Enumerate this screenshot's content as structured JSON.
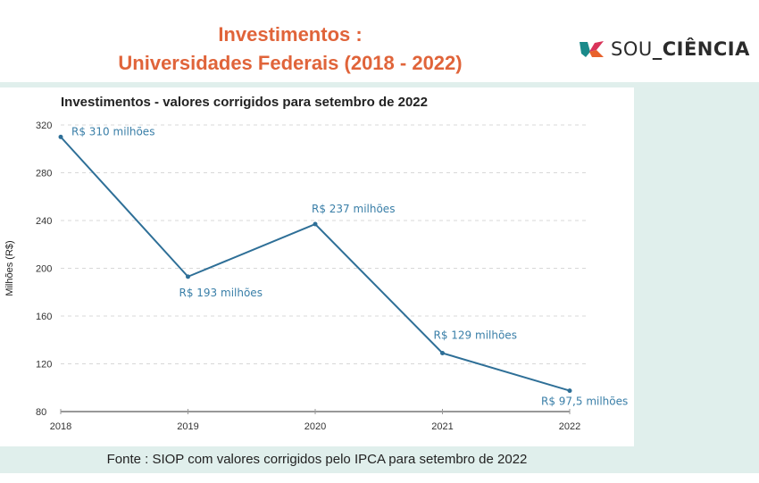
{
  "header": {
    "title_line1": "Investimentos :",
    "title_line2": "Universidades Federais (2018 - 2022)",
    "logo": {
      "icon": "sou-ciencia-logo-icon",
      "text_light": "SOU",
      "text_bold": "_CIÊNCIA",
      "colors": [
        "#1a8a8a",
        "#d9345a",
        "#e8622c"
      ]
    }
  },
  "colors": {
    "title": "#e0643a",
    "line": "#2e6f97",
    "label": "#3a7fa8",
    "band": "#e0efec"
  },
  "source": "Fonte : SIOP com valores corrigidos pelo IPCA para setembro de 2022",
  "chart_data": {
    "type": "line",
    "title": "Investimentos - valores corrigidos para setembro de 2022",
    "xlabel": "",
    "ylabel": "Milhões (R$)",
    "categories": [
      "2018",
      "2019",
      "2020",
      "2021",
      "2022"
    ],
    "series": [
      {
        "name": "Investimentos",
        "values": [
          310,
          193,
          237,
          129,
          97.5
        ],
        "labels": [
          "R$ 310 milhões",
          "R$ 193 milhões",
          "R$ 237 milhões",
          "R$ 129 milhões",
          "R$ 97,5 milhões"
        ]
      }
    ],
    "ylim": [
      80,
      320
    ],
    "yticks": [
      80,
      120,
      160,
      200,
      240,
      280,
      320
    ],
    "grid": true,
    "legend": "none"
  }
}
